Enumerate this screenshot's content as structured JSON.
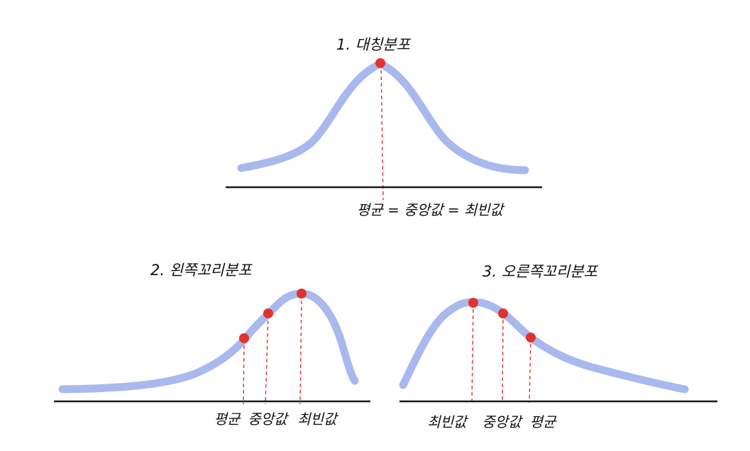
{
  "colors": {
    "curve": "#a9b9ee",
    "axis": "#1a1a1a",
    "point": "#e3322d",
    "guide": "#e3322d",
    "text": "#111111"
  },
  "panels": [
    {
      "id": "symmetric",
      "title": "1. 대칭분포",
      "label": "평균 = 중앙값 = 최빈값",
      "point_count": 1
    },
    {
      "id": "left-skewed",
      "title": "2. 왼쪽꼬리분포",
      "labels": [
        "평균",
        "중앙값",
        "최빈값"
      ]
    },
    {
      "id": "right-skewed",
      "title": "3. 오른쪽꼬리분포",
      "labels": [
        "최빈값",
        "중앙값",
        "평균"
      ]
    }
  ]
}
